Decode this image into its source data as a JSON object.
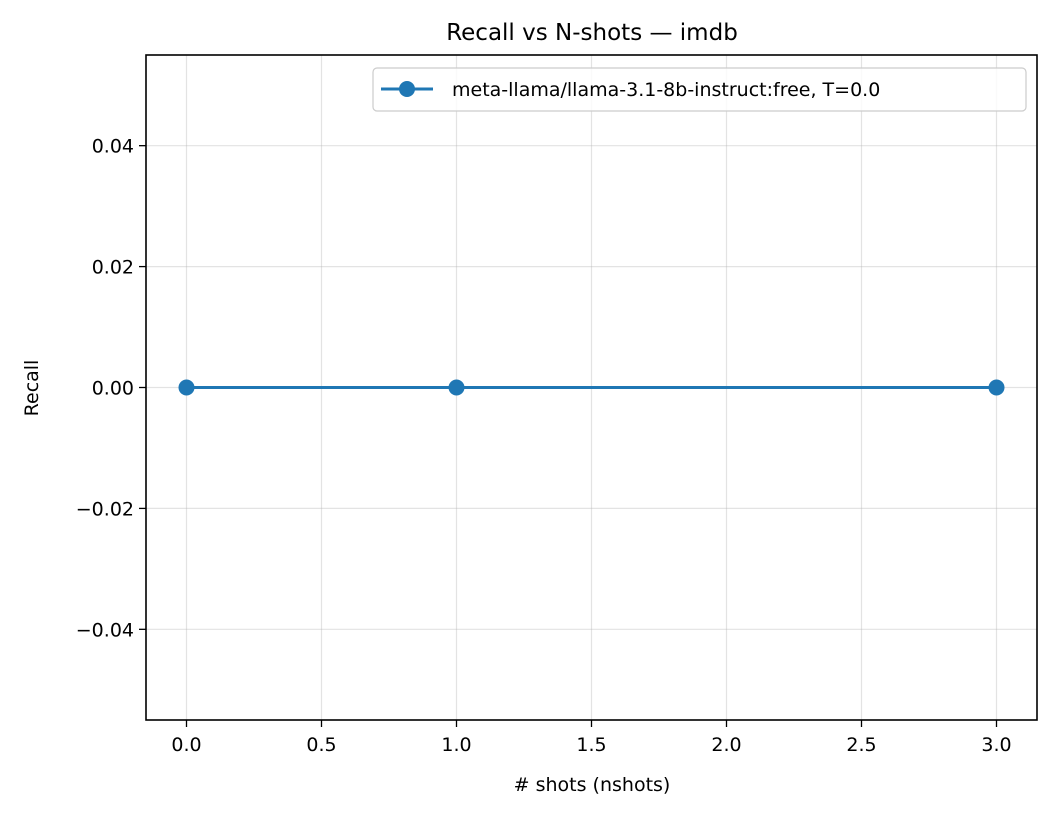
{
  "chart_data": {
    "type": "line",
    "title": "Recall vs N-shots — imdb",
    "xlabel": "# shots (nshots)",
    "ylabel": "Recall",
    "xlim": [
      -0.15,
      3.15
    ],
    "ylim": [
      -0.055,
      0.055
    ],
    "xticks": [
      0.0,
      0.5,
      1.0,
      1.5,
      2.0,
      2.5,
      3.0
    ],
    "xtick_labels": [
      "0.0",
      "0.5",
      "1.0",
      "1.5",
      "2.0",
      "2.5",
      "3.0"
    ],
    "yticks": [
      -0.04,
      -0.02,
      0.0,
      0.02,
      0.04
    ],
    "ytick_labels": [
      "−0.04",
      "−0.02",
      "0.00",
      "0.02",
      "0.04"
    ],
    "grid": true,
    "legend_position": "top-right",
    "series": [
      {
        "name": "meta-llama/llama-3.1-8b-instruct:free, T=0.0",
        "color": "#1f77b4",
        "marker": "circle",
        "x": [
          0,
          1,
          3
        ],
        "y": [
          0.0,
          0.0,
          0.0
        ]
      }
    ]
  }
}
